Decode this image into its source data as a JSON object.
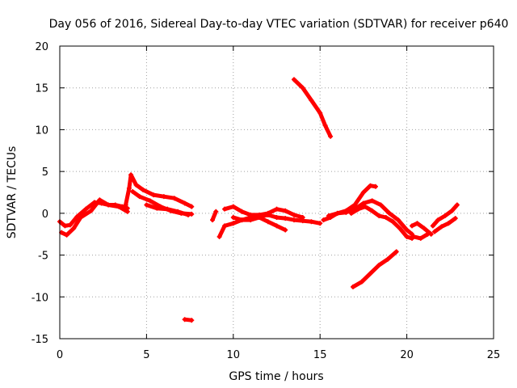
{
  "chart_data": {
    "type": "scatter",
    "title": "Day 056 of 2016, Sidereal Day-to-day VTEC variation (SDTVAR) for receiver p640",
    "xlabel": "GPS time / hours",
    "ylabel": "SDTVAR / TECUs",
    "xlim": [
      0,
      25
    ],
    "ylim": [
      -15,
      20
    ],
    "xticks": [
      "0",
      "5",
      "10",
      "15",
      "20",
      "25"
    ],
    "yticks": [
      "-15",
      "-10",
      "-5",
      "0",
      "5",
      "10",
      "15",
      "20"
    ],
    "grid": true,
    "marker": "+",
    "color": "#ff0000",
    "series": [
      {
        "name": "s1",
        "x": [
          0.0,
          0.3,
          0.6,
          1.0,
          1.5,
          2.0,
          2.4,
          2.8,
          3.2,
          3.6,
          3.9
        ],
        "y": [
          -1.0,
          -1.5,
          -1.4,
          -0.4,
          0.5,
          1.3,
          1.2,
          1.0,
          1.0,
          0.8,
          0.6
        ]
      },
      {
        "name": "s2",
        "x": [
          0.1,
          0.4,
          0.8,
          1.2,
          1.8,
          2.3,
          2.8,
          3.4,
          3.9
        ],
        "y": [
          -2.3,
          -2.6,
          -1.8,
          -0.5,
          0.3,
          1.6,
          1.0,
          0.8,
          0.2
        ]
      },
      {
        "name": "s3",
        "x": [
          3.8,
          4.0,
          4.1,
          4.4,
          4.8,
          5.4,
          6.0,
          6.6,
          7.2,
          7.6
        ],
        "y": [
          1.0,
          3.0,
          4.6,
          3.4,
          2.8,
          2.2,
          2.0,
          1.8,
          1.2,
          0.8
        ]
      },
      {
        "name": "s4",
        "x": [
          4.2,
          4.6,
          5.2,
          5.8,
          6.4,
          7.0,
          7.6
        ],
        "y": [
          2.6,
          2.0,
          1.5,
          0.8,
          0.3,
          0.0,
          -0.1
        ]
      },
      {
        "name": "s5",
        "x": [
          5.0,
          5.6,
          6.2,
          6.8,
          7.4
        ],
        "y": [
          1.0,
          0.6,
          0.5,
          0.2,
          -0.2
        ]
      },
      {
        "name": "s6",
        "x": [
          7.2,
          7.6
        ],
        "y": [
          -12.7,
          -12.8
        ]
      },
      {
        "name": "s7",
        "x": [
          8.8,
          9.0
        ],
        "y": [
          -0.8,
          0.2
        ]
      },
      {
        "name": "s8",
        "x": [
          9.2,
          9.5,
          10.0,
          10.5,
          11.0,
          11.5,
          12.0,
          12.5,
          13.0,
          13.5,
          14.0,
          14.5,
          15.0
        ],
        "y": [
          -2.8,
          -1.5,
          -1.2,
          -0.8,
          -0.5,
          -0.4,
          -0.2,
          -0.5,
          -0.6,
          -0.8,
          -0.9,
          -1.0,
          -1.2
        ]
      },
      {
        "name": "s9",
        "x": [
          9.5,
          10.0,
          10.5,
          11.0,
          11.5,
          12.0,
          12.5,
          13.0,
          13.5,
          14.0
        ],
        "y": [
          0.5,
          0.8,
          0.2,
          -0.2,
          -0.2,
          0.0,
          0.5,
          0.3,
          -0.2,
          -0.5
        ]
      },
      {
        "name": "s10",
        "x": [
          10.0,
          10.5,
          11.0,
          11.5,
          12.0,
          12.5,
          13.0
        ],
        "y": [
          -0.5,
          -0.8,
          -0.8,
          -0.5,
          -1.0,
          -1.5,
          -2.0
        ]
      },
      {
        "name": "s11",
        "x": [
          13.5,
          14.0,
          14.5,
          15.0,
          15.3,
          15.6
        ],
        "y": [
          16.0,
          15.0,
          13.5,
          12.0,
          10.5,
          9.2
        ]
      },
      {
        "name": "s12",
        "x": [
          15.2,
          15.6,
          16.0,
          16.5,
          17.0,
          17.5,
          17.9,
          18.2
        ],
        "y": [
          -0.8,
          -0.5,
          0.0,
          0.3,
          1.0,
          2.5,
          3.3,
          3.2
        ]
      },
      {
        "name": "s13",
        "x": [
          15.5,
          16.0,
          16.5,
          17.0,
          17.5,
          18.0,
          18.5,
          19.0,
          19.5,
          20.0,
          20.3
        ],
        "y": [
          -0.3,
          0.0,
          0.1,
          0.5,
          1.2,
          1.5,
          1.0,
          0.0,
          -0.8,
          -2.0,
          -2.5
        ]
      },
      {
        "name": "s14",
        "x": [
          16.8,
          17.2,
          17.6,
          18.0,
          18.4,
          18.8,
          19.2,
          19.6,
          20.0,
          20.3
        ],
        "y": [
          0.0,
          0.5,
          0.8,
          0.3,
          -0.3,
          -0.5,
          -1.0,
          -1.8,
          -2.8,
          -3.0
        ]
      },
      {
        "name": "s15",
        "x": [
          16.9,
          17.4,
          17.9,
          18.4,
          18.9,
          19.4
        ],
        "y": [
          -8.8,
          -8.2,
          -7.2,
          -6.2,
          -5.5,
          -4.6
        ]
      },
      {
        "name": "s16",
        "x": [
          20.3,
          20.6,
          21.0,
          21.4
        ],
        "y": [
          -1.5,
          -1.2,
          -1.8,
          -2.5
        ]
      },
      {
        "name": "s17",
        "x": [
          20.4,
          20.8,
          21.2
        ],
        "y": [
          -2.8,
          -3.0,
          -2.5
        ]
      },
      {
        "name": "s18",
        "x": [
          21.5,
          21.8,
          22.2,
          22.6,
          22.9
        ],
        "y": [
          -1.5,
          -0.8,
          -0.3,
          0.3,
          1.0
        ]
      },
      {
        "name": "s19",
        "x": [
          21.6,
          22.0,
          22.4,
          22.8
        ],
        "y": [
          -2.2,
          -1.6,
          -1.2,
          -0.6
        ]
      }
    ]
  }
}
